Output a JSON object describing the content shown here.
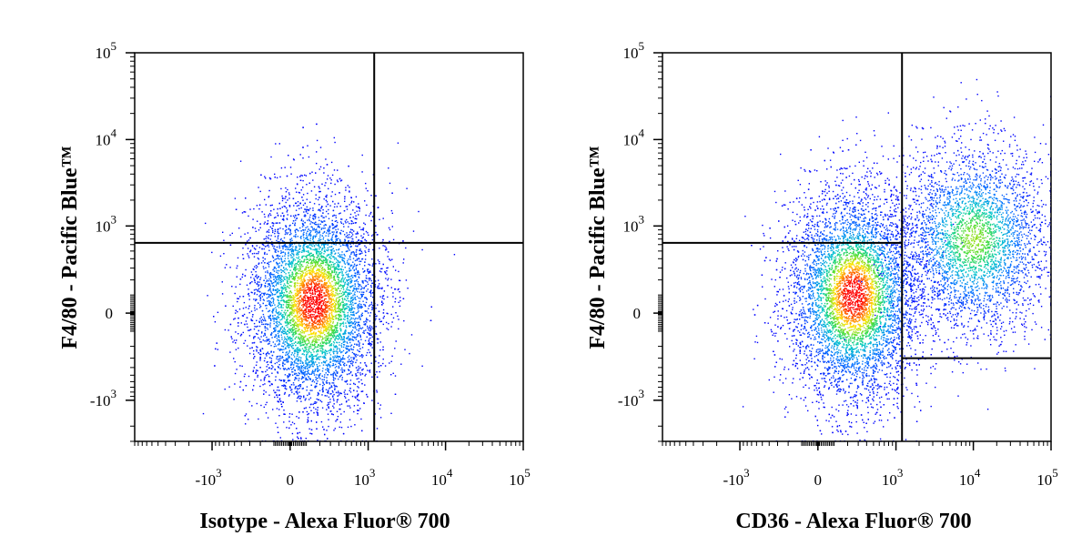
{
  "chart_data": [
    {
      "type": "scatter",
      "subtype": "flow-cytometry-density-plot",
      "scale": "biexponential",
      "xlabel": "Isotype - Alexa Fluor® 700",
      "ylabel": "F4/80 - Pacific Blue™",
      "x_tick_labels": [
        {
          "value": -1000,
          "base": "-10",
          "exp": "3"
        },
        {
          "value": 0,
          "base": "0",
          "exp": ""
        },
        {
          "value": 1000,
          "base": "10",
          "exp": "3"
        },
        {
          "value": 10000,
          "base": "10",
          "exp": "4"
        },
        {
          "value": 100000,
          "base": "10",
          "exp": "5"
        }
      ],
      "y_tick_labels": [
        {
          "value": -1000,
          "base": "-10",
          "exp": "3"
        },
        {
          "value": 0,
          "base": "0",
          "exp": ""
        },
        {
          "value": 1000,
          "base": "10",
          "exp": "3"
        },
        {
          "value": 10000,
          "base": "10",
          "exp": "4"
        },
        {
          "value": 100000,
          "base": "10",
          "exp": "5"
        }
      ],
      "xlim": [
        -10000,
        100000
      ],
      "ylim": [
        -3000,
        100000
      ],
      "gates": {
        "vertical_x": 1200,
        "horizontal_y": 630
      },
      "populations": [
        {
          "name": "",
          "center_x": 150,
          "center_y": 60,
          "spread": "wide",
          "approx_events": 7000
        }
      ]
    },
    {
      "type": "scatter",
      "subtype": "flow-cytometry-density-plot",
      "scale": "biexponential",
      "xlabel": "CD36 - Alexa Fluor® 700",
      "ylabel": "F4/80 - Pacific Blue™",
      "x_tick_labels": [
        {
          "value": -1000,
          "base": "-10",
          "exp": "3"
        },
        {
          "value": 0,
          "base": "0",
          "exp": ""
        },
        {
          "value": 1000,
          "base": "10",
          "exp": "3"
        },
        {
          "value": 10000,
          "base": "10",
          "exp": "4"
        },
        {
          "value": 100000,
          "base": "10",
          "exp": "5"
        }
      ],
      "y_tick_labels": [
        {
          "value": -1000,
          "base": "-10",
          "exp": "3"
        },
        {
          "value": 0,
          "base": "0",
          "exp": ""
        },
        {
          "value": 1000,
          "base": "10",
          "exp": "3"
        },
        {
          "value": 10000,
          "base": "10",
          "exp": "4"
        },
        {
          "value": 100000,
          "base": "10",
          "exp": "5"
        }
      ],
      "xlim": [
        -10000,
        100000
      ],
      "ylim": [
        -3000,
        100000
      ],
      "gates": {
        "vertical_x": 1200,
        "horizontal_y_left": 630,
        "horizontal_y_right": -300
      },
      "populations": [
        {
          "name": "",
          "center_x": 250,
          "center_y": 100,
          "spread": "wide",
          "approx_events": 6500
        },
        {
          "name": "",
          "center_x": 10000,
          "center_y": 700,
          "spread": "wide",
          "approx_events": 3500
        }
      ]
    }
  ],
  "colors": {
    "density_low": "#0000ff",
    "density_mid": "#00c8c8",
    "density_midhigh": "#40e040",
    "density_high": "#ffff00",
    "density_peak": "#ff0000",
    "axis": "#000000",
    "gate": "#000000"
  }
}
